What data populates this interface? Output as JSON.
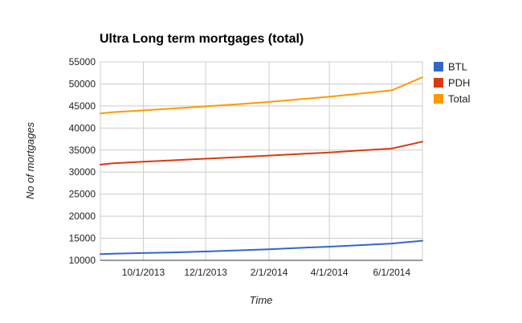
{
  "chart_data": {
    "type": "line",
    "title": "Ultra Long term mortgages (total)",
    "xlabel": "Time",
    "ylabel": "No of mortgages",
    "x": [
      "2013-08-01",
      "2013-09-01",
      "2013-10-01",
      "2013-11-01",
      "2013-12-01",
      "2014-01-01",
      "2014-02-01",
      "2014-03-01",
      "2014-04-01",
      "2014-05-01",
      "2014-06-01",
      "2014-07-01"
    ],
    "x_ticks": [
      "2013-10-01",
      "2013-12-01",
      "2014-02-01",
      "2014-04-01",
      "2014-06-01"
    ],
    "x_tick_labels": [
      "10/1/2013",
      "12/1/2013",
      "2/1/2014",
      "4/1/2014",
      "6/1/2014"
    ],
    "xlim": [
      "2013-08-20",
      "2014-07-01"
    ],
    "ylim": [
      10000,
      55000
    ],
    "y_ticks": [
      10000,
      15000,
      20000,
      25000,
      30000,
      35000,
      40000,
      45000,
      50000,
      55000
    ],
    "grid": true,
    "legend_position": "right",
    "series": [
      {
        "name": "BTL",
        "color": "#3366cc",
        "values": [
          11400,
          11500,
          11650,
          11800,
          12000,
          12250,
          12500,
          12800,
          13100,
          13450,
          13800,
          14450
        ]
      },
      {
        "name": "PDH",
        "color": "#dc3912",
        "values": [
          31700,
          32000,
          32350,
          32700,
          33050,
          33400,
          33750,
          34100,
          34450,
          34900,
          35350,
          36900
        ]
      },
      {
        "name": "Total",
        "color": "#ff9900",
        "values": [
          43300,
          43600,
          44000,
          44450,
          44900,
          45400,
          45900,
          46500,
          47100,
          47800,
          48550,
          51500
        ]
      }
    ]
  }
}
